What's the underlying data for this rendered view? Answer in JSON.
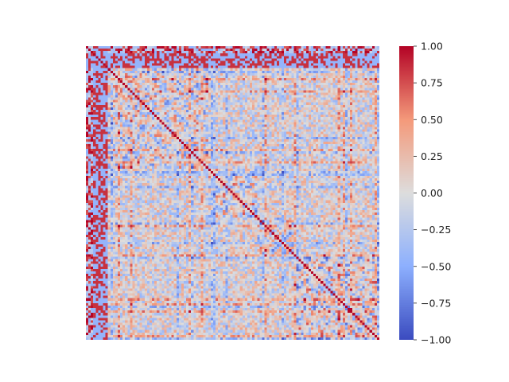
{
  "chart_data": {
    "type": "heatmap",
    "title": "",
    "xlabel": "",
    "ylabel": "",
    "grid": false,
    "legend": "colorbar-right",
    "colormap": "coolwarm",
    "colormap_stops": [
      "#3b4cc0",
      "#8db0fe",
      "#dddddd",
      "#f49a7b",
      "#b40426"
    ],
    "value_range": [
      -1.0,
      1.0
    ],
    "matrix_size": 120,
    "colorbar": {
      "ticks": [
        {
          "value": 1.0,
          "label": "1.00"
        },
        {
          "value": 0.75,
          "label": "0.75"
        },
        {
          "value": 0.5,
          "label": "0.50"
        },
        {
          "value": 0.25,
          "label": "0.25"
        },
        {
          "value": 0.0,
          "label": "0.00"
        },
        {
          "value": -0.25,
          "label": "−0.25"
        },
        {
          "value": -0.5,
          "label": "−0.50"
        },
        {
          "value": -0.75,
          "label": "−0.75"
        },
        {
          "value": -1.0,
          "label": "−1.00"
        }
      ]
    }
  }
}
